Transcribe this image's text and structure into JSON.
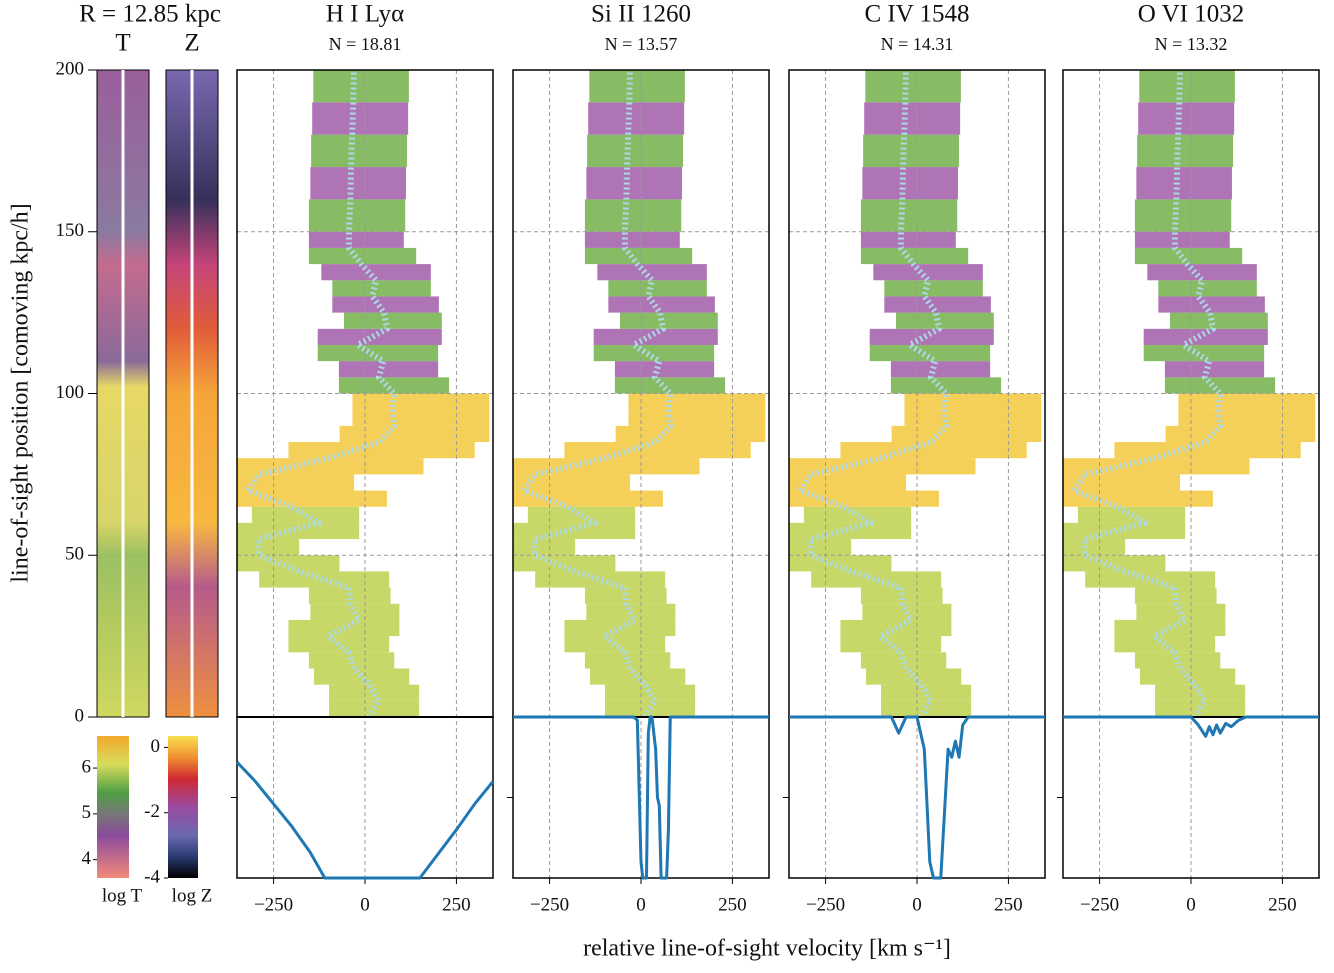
{
  "header": {
    "radius": "R = 12.85 kpc",
    "temperature_label": "T",
    "metallicity_label": "Z"
  },
  "axes": {
    "ylabel": "line-of-sight position [comoving kpc/h]",
    "xlabel": "relative line-of-sight velocity [km s⁻¹]",
    "ylim": [
      0,
      200
    ],
    "yticks": [
      0,
      50,
      100,
      150,
      200
    ],
    "xlim": [
      -350,
      350
    ],
    "xticks": [
      {
        "value": -250,
        "label": "−250"
      },
      0,
      250
    ],
    "flux_ylim": [
      0,
      1
    ],
    "flux_yticks": [
      0.5
    ],
    "grid": true
  },
  "colorbars": {
    "temperature": {
      "label": "log T",
      "lim": [
        3.6,
        6.7
      ],
      "ticks": [
        4,
        5,
        6
      ]
    },
    "metallicity": {
      "label": "log Z",
      "lim": [
        -4,
        0.35
      ],
      "ticks": [
        -4,
        -2,
        0
      ]
    }
  },
  "velocity_track": {
    "color": "#add8e6",
    "position": [
      0,
      5,
      10,
      15,
      20,
      25,
      30,
      35,
      40,
      45,
      50,
      55,
      60,
      65,
      70,
      75,
      80,
      85,
      90,
      95,
      100,
      105,
      110,
      115,
      120,
      125,
      130,
      135,
      140,
      145,
      150,
      160,
      170,
      180,
      190,
      200
    ],
    "velocity": [
      11,
      38,
      11,
      -30,
      -44,
      -100,
      -16,
      -40,
      -44,
      -180,
      -290,
      -290,
      -126,
      -200,
      -320,
      -290,
      -100,
      40,
      80,
      75,
      80,
      38,
      50,
      -20,
      60,
      52,
      20,
      30,
      -10,
      -44,
      -44,
      -40,
      -38,
      -35,
      -32,
      -30
    ]
  },
  "chart_data": [
    {
      "type": "line",
      "title": "H I Lyα",
      "subtitle": "N = 18.81",
      "color": "#1f77b4",
      "x": [
        -350,
        -300,
        -250,
        -200,
        -150,
        -110,
        0,
        100,
        150,
        200,
        250,
        300,
        350
      ],
      "values": [
        0.72,
        0.6,
        0.46,
        0.32,
        0.16,
        0,
        0,
        0,
        0,
        0.15,
        0.3,
        0.46,
        0.6
      ]
    },
    {
      "type": "line",
      "title": "Si II 1260",
      "subtitle": "N = 13.57",
      "color": "#1f77b4",
      "x": [
        -350,
        -20,
        -10,
        0,
        5,
        15,
        20,
        25,
        30,
        40,
        45,
        50,
        55,
        60,
        65,
        70,
        75,
        80,
        350
      ],
      "values": [
        1,
        1,
        0.98,
        0.1,
        0,
        0,
        0.9,
        1,
        1,
        0.8,
        0.5,
        0.45,
        0,
        0,
        0,
        0,
        0.3,
        1,
        1
      ]
    },
    {
      "type": "line",
      "title": "C IV 1548",
      "subtitle": "N = 14.31",
      "color": "#1f77b4",
      "x": [
        -350,
        -70,
        -50,
        -30,
        0,
        20,
        35,
        45,
        55,
        65,
        75,
        85,
        95,
        105,
        115,
        125,
        140,
        350
      ],
      "values": [
        1,
        1,
        0.9,
        1,
        1,
        0.8,
        0.1,
        0,
        0,
        0,
        0.4,
        0.8,
        0.75,
        0.85,
        0.75,
        0.95,
        1,
        1
      ]
    },
    {
      "type": "line",
      "title": "O VI 1032",
      "subtitle": "N = 13.32",
      "color": "#1f77b4",
      "x": [
        -350,
        -50,
        0,
        20,
        40,
        50,
        60,
        70,
        80,
        95,
        110,
        130,
        150,
        350
      ],
      "values": [
        1,
        1,
        1,
        0.95,
        0.88,
        0.94,
        0.89,
        0.95,
        0.9,
        0.96,
        0.94,
        0.98,
        1,
        1
      ]
    }
  ]
}
